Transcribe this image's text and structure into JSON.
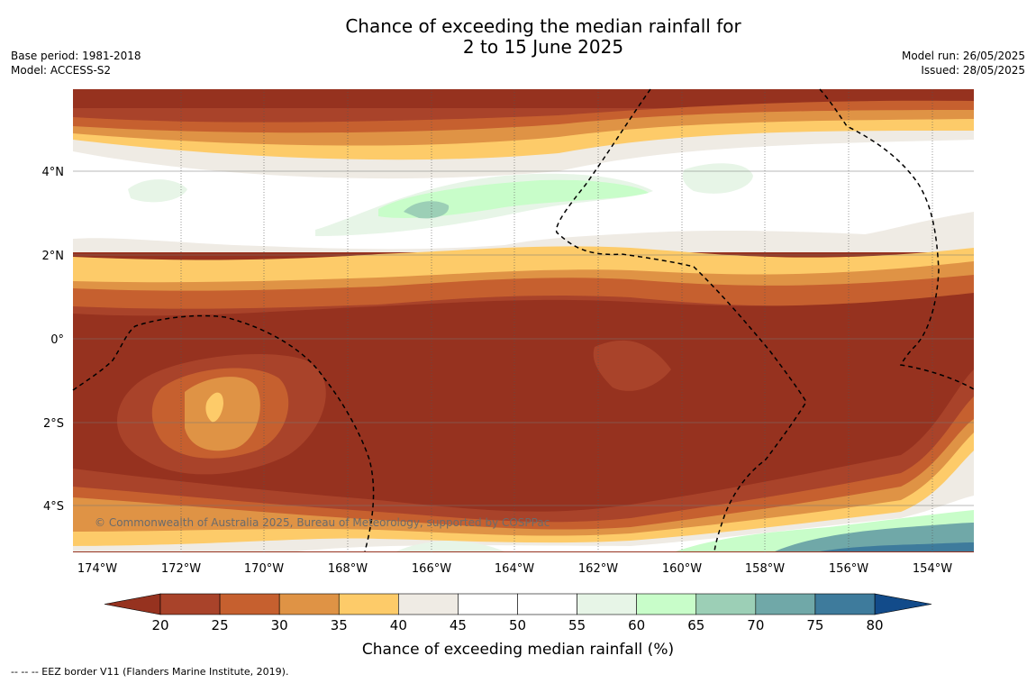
{
  "title_line1": "Chance of exceeding the median rainfall for",
  "title_line2": "2 to 15 June 2025",
  "meta_left": {
    "base_period": "Base period: 1981-2018",
    "model": "Model: ACCESS-S2"
  },
  "meta_right": {
    "model_run": "Model run: 26/05/2025",
    "issued": "Issued: 28/05/2025"
  },
  "copyright": "© Commonwealth of Australia 2025, Bureau of Meteorology, supported by COSPPac",
  "longitude_labels": [
    "174°W",
    "172°W",
    "170°W",
    "168°W",
    "166°W",
    "164°W",
    "162°W",
    "160°W",
    "158°W",
    "156°W",
    "154°W"
  ],
  "latitude_labels": [
    "4°N",
    "2°N",
    "0°",
    "2°S",
    "4°S"
  ],
  "colorbar": {
    "label": "Chance of exceeding median rainfall (%)",
    "ticks": [
      "20",
      "25",
      "30",
      "35",
      "40",
      "45",
      "50",
      "55",
      "60",
      "65",
      "70",
      "75",
      "80"
    ],
    "colors": [
      "#a9432a",
      "#c6602f",
      "#df9345",
      "#fdcb69",
      "#efebe4",
      "#ffffff",
      "#ffffff",
      "#e7f5e7",
      "#c8fdc9",
      "#9ccfb6",
      "#70a8a8",
      "#3e7b9c"
    ],
    "under_color": "#96321f",
    "over_color": "#124b8a"
  },
  "footer": "--  --  -- EEZ border V11 (Flanders Marine Institute, 2019)."
}
